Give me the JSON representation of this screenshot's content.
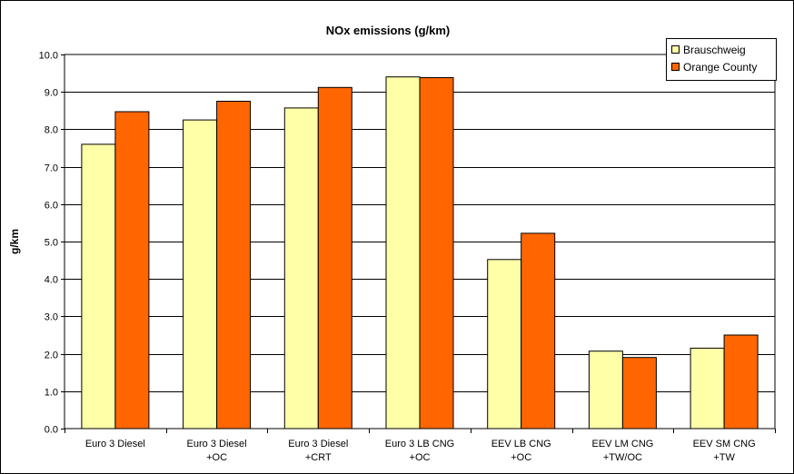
{
  "chart_data": {
    "type": "bar",
    "title": "NOx emissions (g/km)",
    "xlabel": "",
    "ylabel": "g/km",
    "ylim": [
      0,
      10
    ],
    "ytick_step": 1,
    "ytick_format": "0.0",
    "grid": true,
    "legend_position": "top-right",
    "categories": [
      [
        "Euro 3 Diesel"
      ],
      [
        "Euro 3 Diesel",
        "+OC"
      ],
      [
        "Euro 3 Diesel",
        "+CRT"
      ],
      [
        "Euro 3 LB CNG",
        "+OC"
      ],
      [
        "EEV LB CNG",
        "+OC"
      ],
      [
        "EEV LM CNG",
        "+TW/OC"
      ],
      [
        "EEV SM CNG",
        "+TW"
      ]
    ],
    "series": [
      {
        "name": "Brauschweig",
        "color": "#FFFFA8",
        "values": [
          7.6,
          8.25,
          8.57,
          9.4,
          4.52,
          2.07,
          2.15
        ]
      },
      {
        "name": "Orange County",
        "color": "#FF6600",
        "values": [
          8.47,
          8.75,
          9.12,
          9.38,
          5.22,
          1.9,
          2.5
        ]
      }
    ]
  }
}
